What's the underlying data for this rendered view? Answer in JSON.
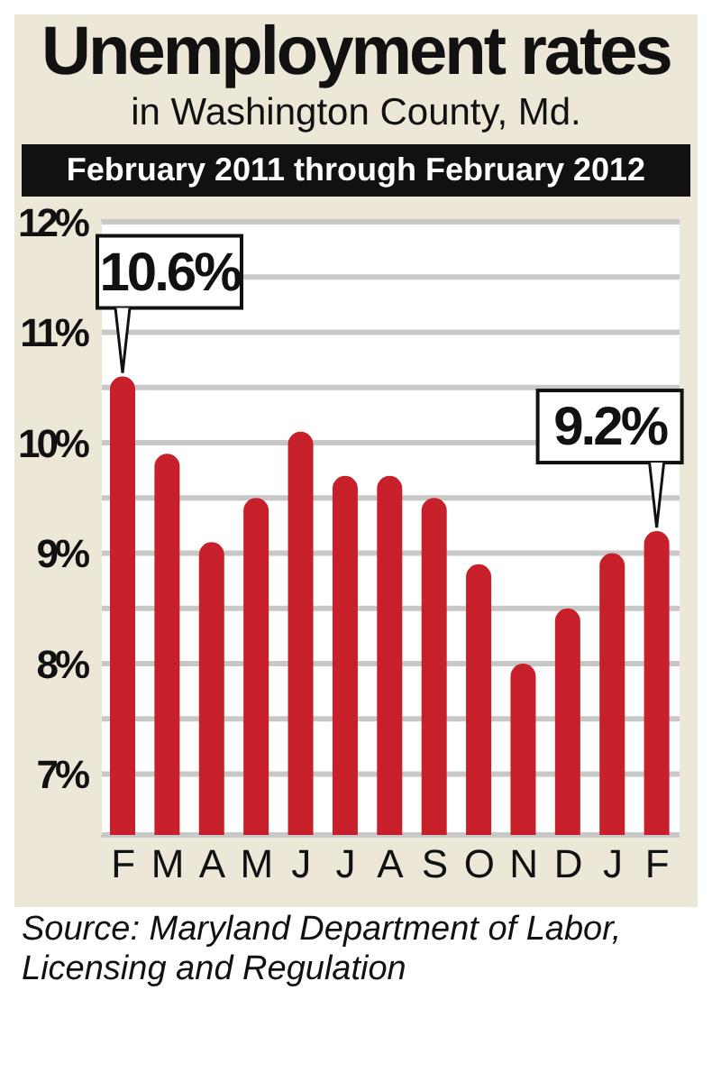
{
  "chart_data": {
    "type": "bar",
    "title": "Unemployment rates",
    "subtitle": "in Washington County, Md.",
    "annotations": [
      "February 2011 through February 2012",
      "Source: Maryland Department of Labor, Licensing and Regulation"
    ],
    "categories": [
      "F",
      "M",
      "A",
      "M",
      "J",
      "J",
      "A",
      "S",
      "O",
      "N",
      "D",
      "J",
      "F"
    ],
    "values": [
      10.6,
      9.9,
      9.1,
      9.5,
      10.1,
      9.7,
      9.7,
      9.5,
      8.9,
      8.0,
      8.5,
      9.0,
      9.2
    ],
    "value_labels": [
      "10.6%",
      null,
      null,
      null,
      null,
      null,
      null,
      null,
      null,
      null,
      null,
      null,
      "9.2%"
    ],
    "color": "#c8202a",
    "ylim": [
      6.45,
      12
    ],
    "yticks": [
      {
        "value": 7,
        "label": "7%"
      },
      {
        "value": 7.5,
        "label": null
      },
      {
        "value": 8,
        "label": "8%"
      },
      {
        "value": 8.5,
        "label": null
      },
      {
        "value": 9,
        "label": "9%"
      },
      {
        "value": 9.5,
        "label": null
      },
      {
        "value": 10,
        "label": "10%"
      },
      {
        "value": 10.5,
        "label": null
      },
      {
        "value": 11,
        "label": "11%"
      },
      {
        "value": 11.5,
        "label": null
      },
      {
        "value": 12,
        "label": "12%"
      }
    ],
    "grid": "y"
  }
}
